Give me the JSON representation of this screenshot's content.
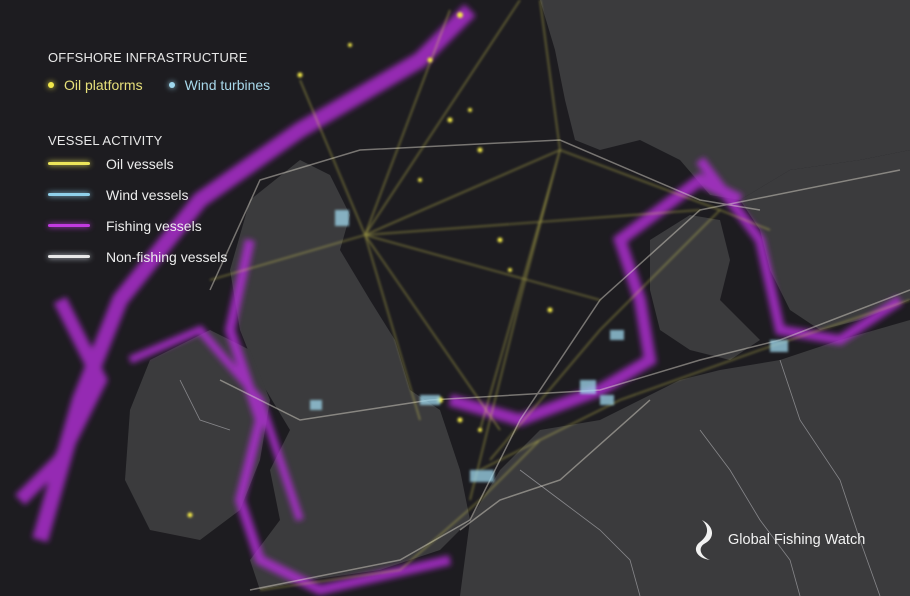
{
  "legend": {
    "infrastructure_title": "OFFSHORE INFRASTRUCTURE",
    "infrastructure": [
      {
        "label": "Oil platforms",
        "color": "#f2e84a",
        "text_color": "#e7e07a",
        "icon": "dot-icon"
      },
      {
        "label": "Wind turbines",
        "color": "#9fd8ee",
        "text_color": "#a8d8ea",
        "icon": "dot-icon"
      }
    ],
    "vessel_title": "VESSEL ACTIVITY",
    "vessels": [
      {
        "label": "Oil vessels",
        "color": "#ede65a"
      },
      {
        "label": "Wind vessels",
        "color": "#8fd0ea"
      },
      {
        "label": "Fishing vessels",
        "color": "#c13be0"
      },
      {
        "label": "Non-fishing vessels",
        "color": "#e8e8e8"
      }
    ]
  },
  "logo": {
    "text": "Global Fishing Watch"
  },
  "colors": {
    "sea": "#1d1c20",
    "land": "#3a3a3c",
    "border": "#a0a0a4"
  }
}
